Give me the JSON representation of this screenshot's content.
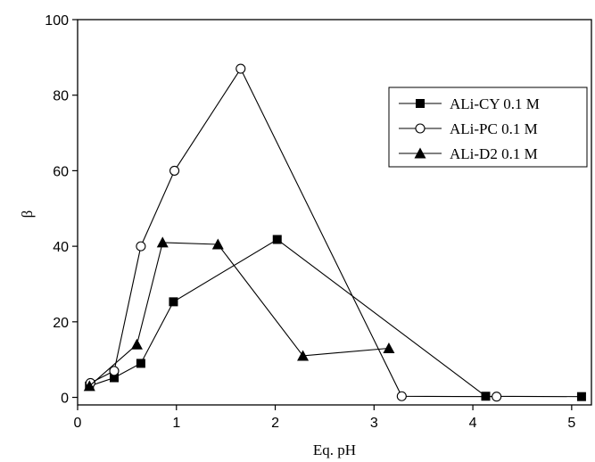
{
  "chart_data": {
    "type": "line",
    "xlabel": "Eq. pH",
    "ylabel": "β",
    "xlim": [
      0,
      5.2
    ],
    "ylim": [
      -2,
      100
    ],
    "xticks": [
      0,
      1,
      2,
      3,
      4,
      5
    ],
    "yticks": [
      0,
      20,
      40,
      60,
      80,
      100
    ],
    "grid": false,
    "legend_position": "top-right",
    "series": [
      {
        "name": "ALi-CY 0.1 M",
        "marker": "filled-square",
        "color": "#000000",
        "x": [
          0.12,
          0.37,
          0.64,
          0.97,
          2.02,
          4.13,
          5.1
        ],
        "y": [
          3.0,
          5.2,
          9.0,
          25.3,
          41.8,
          0.3,
          0.2
        ]
      },
      {
        "name": "ALi-PC 0.1 M",
        "marker": "open-circle",
        "color": "#000000",
        "x": [
          0.13,
          0.37,
          0.64,
          0.98,
          1.65,
          3.28,
          4.24
        ],
        "y": [
          3.8,
          7.0,
          40.0,
          60.0,
          87.0,
          0.3,
          0.2
        ]
      },
      {
        "name": "ALi-D2 0.1 M",
        "marker": "filled-triangle",
        "color": "#000000",
        "x": [
          0.12,
          0.6,
          0.86,
          1.42,
          2.28,
          3.15
        ],
        "y": [
          3.0,
          14.0,
          41.0,
          40.5,
          11.0,
          13.0
        ]
      }
    ]
  }
}
